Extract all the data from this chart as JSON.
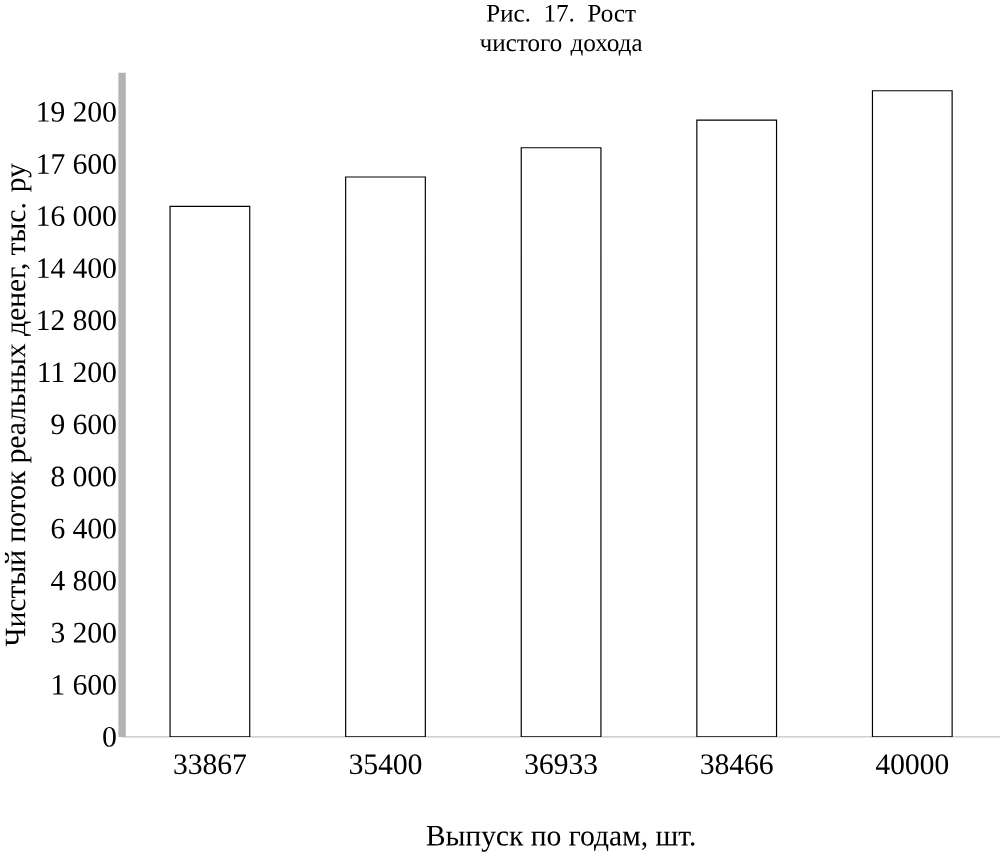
{
  "chart_data": {
    "type": "bar",
    "title": "Рис. 17. Рост чистого дохода",
    "xlabel": "Выпуск по годам, шт.",
    "ylabel": "Чистый поток реальных денег, тыс. ру",
    "categories": [
      "33867",
      "35400",
      "36933",
      "38466",
      "40000"
    ],
    "values": [
      16300,
      17200,
      18100,
      18950,
      19850
    ],
    "color": "#ffffff",
    "ylim": [
      0,
      20400
    ],
    "yticks": [
      0,
      {
        "value": 1600,
        "label": "1 600"
      },
      {
        "value": 3200,
        "label": "3 200"
      },
      {
        "value": 4800,
        "label": "4 800"
      },
      {
        "value": 6400,
        "label": "6 400"
      },
      {
        "value": 8000,
        "label": "8 000"
      },
      {
        "value": 9600,
        "label": "9 600"
      },
      {
        "value": 11200,
        "label": "11 200"
      },
      {
        "value": 12800,
        "label": "12 800"
      },
      {
        "value": 14400,
        "label": "14 400"
      },
      {
        "value": 16000,
        "label": "16 000"
      },
      {
        "value": 17600,
        "label": "17 600"
      },
      {
        "value": 19200,
        "label": "19 200"
      }
    ],
    "grid": false
  }
}
